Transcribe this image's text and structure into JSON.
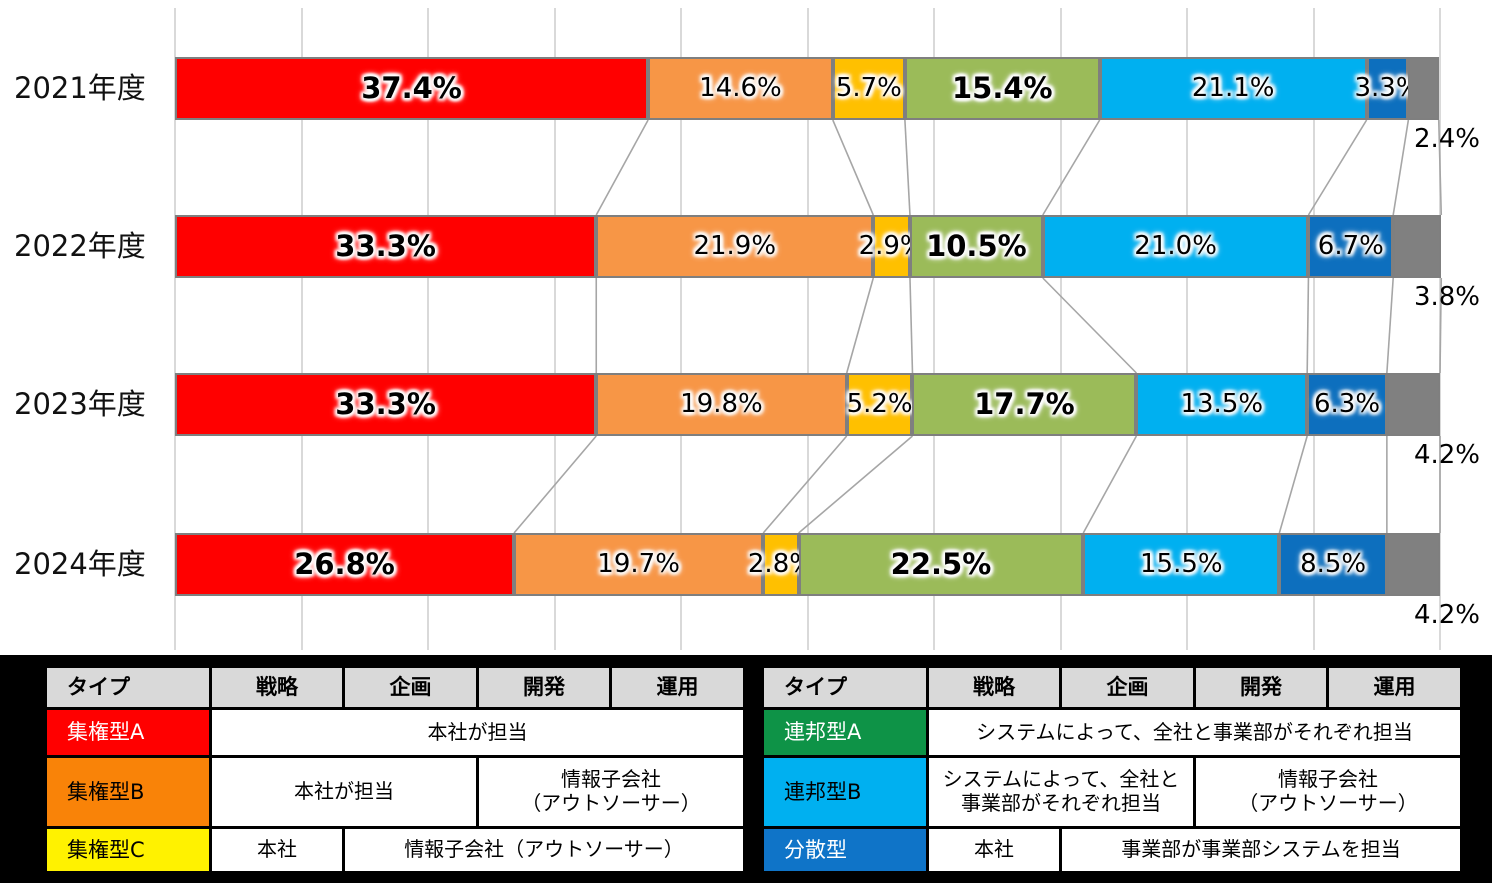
{
  "chart_data": {
    "type": "bar",
    "subtype": "horizontal-stacked-100-percent",
    "categories": [
      "2021年度",
      "2022年度",
      "2023年度",
      "2024年度"
    ],
    "xlim": [
      0,
      100
    ],
    "grid": true,
    "grid_step_percent": 10,
    "value_suffix": "%",
    "series": [
      {
        "name": "集権型A",
        "color": "#FF0000",
        "bold_labels": true,
        "label_outside": false,
        "values": [
          37.4,
          33.3,
          33.3,
          26.8
        ]
      },
      {
        "name": "集権型B",
        "color": "#F79646",
        "bold_labels": false,
        "label_outside": false,
        "values": [
          14.6,
          21.9,
          19.8,
          19.7
        ]
      },
      {
        "name": "集権型C",
        "color": "#FFC000",
        "bold_labels": false,
        "label_outside": false,
        "values": [
          5.7,
          2.9,
          5.2,
          2.8
        ]
      },
      {
        "name": "連邦型A",
        "color": "#9BBB59",
        "bold_labels": true,
        "label_outside": false,
        "values": [
          15.4,
          10.5,
          17.7,
          22.5
        ]
      },
      {
        "name": "連邦型B",
        "color": "#00B0F0",
        "bold_labels": false,
        "label_outside": false,
        "values": [
          21.1,
          21.0,
          13.5,
          15.5
        ]
      },
      {
        "name": "分散型",
        "color": "#0D6FBE",
        "bold_labels": false,
        "label_outside": false,
        "values": [
          3.3,
          6.7,
          6.3,
          8.5
        ]
      },
      {
        "name": "",
        "color": "#808080",
        "bold_labels": false,
        "label_outside": true,
        "values": [
          2.4,
          3.8,
          4.2,
          4.2
        ]
      }
    ]
  },
  "colors": {
    "grid": "#D9D9D9",
    "connector": "#A6A6A6",
    "bar_border": "#7F7F7F",
    "legend_band_bg": "#000000",
    "legend_header_bg": "#D9D9D9"
  },
  "legend": {
    "tables": [
      {
        "headers": [
          "タイプ",
          "戦略",
          "企画",
          "開発",
          "運用"
        ],
        "rows": [
          {
            "type_label": "集権型A",
            "type_bg": "#FF0000",
            "type_fg": "#FFFFFF",
            "cells": [
              {
                "text": "本社が担当",
                "colspan": 4
              }
            ]
          },
          {
            "type_label": "集権型B",
            "type_bg": "#F98308",
            "type_fg": "#000000",
            "cells": [
              {
                "text": "本社が担当",
                "colspan": 2
              },
              {
                "text": "情報子会社\n（アウトソーサー）",
                "colspan": 2
              }
            ]
          },
          {
            "type_label": "集権型C",
            "type_bg": "#FFF200",
            "type_fg": "#000000",
            "cells": [
              {
                "text": "本社",
                "colspan": 1
              },
              {
                "text": "情報子会社（アウトソーサー）",
                "colspan": 3
              }
            ]
          }
        ]
      },
      {
        "headers": [
          "タイプ",
          "戦略",
          "企画",
          "開発",
          "運用"
        ],
        "rows": [
          {
            "type_label": "連邦型A",
            "type_bg": "#0E9347",
            "type_fg": "#FFFFFF",
            "cells": [
              {
                "text": "システムによって、全社と事業部がそれぞれ担当",
                "colspan": 4
              }
            ]
          },
          {
            "type_label": "連邦型B",
            "type_bg": "#00B0F0",
            "type_fg": "#000000",
            "cells": [
              {
                "text": "システムによって、全社と\n事業部がそれぞれ担当",
                "colspan": 2
              },
              {
                "text": "情報子会社\n（アウトソーサー）",
                "colspan": 2
              }
            ]
          },
          {
            "type_label": "分散型",
            "type_bg": "#0F74C8",
            "type_fg": "#FFFFFF",
            "cells": [
              {
                "text": "本社",
                "colspan": 1
              },
              {
                "text": "事業部が事業部システムを担当",
                "colspan": 3
              }
            ]
          }
        ]
      }
    ]
  }
}
